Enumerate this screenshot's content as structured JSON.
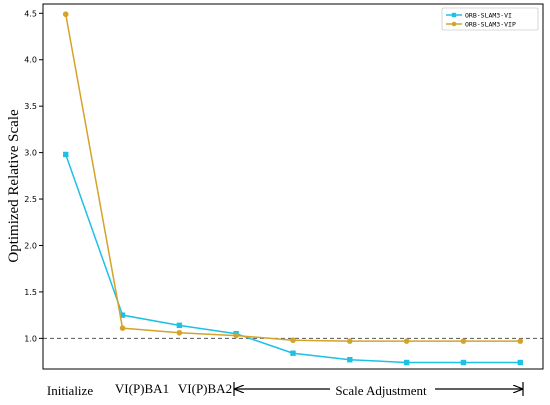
{
  "chart_data": {
    "type": "line",
    "title": "",
    "xlabel": "",
    "ylabel": "Optimized Relative Scale",
    "x": [
      1,
      2,
      3,
      4,
      5,
      6,
      7,
      8,
      9
    ],
    "xlim": [
      0.6,
      9.4
    ],
    "ylim": [
      0.67,
      4.6
    ],
    "yticks": [
      1.0,
      1.5,
      2.0,
      2.5,
      3.0,
      3.5,
      4.0,
      4.5
    ],
    "ytick_labels": [
      "1.0",
      "1.5",
      "2.0",
      "2.5",
      "3.0",
      "3.5",
      "4.0",
      "4.5"
    ],
    "reference_line": {
      "y": 1.0,
      "style": "dashed",
      "color": "#555555"
    },
    "x_annotations": {
      "initialize": "Initialize",
      "ba1": "VI(P)BA1",
      "ba2": "VI(P)BA2",
      "scale_adjustment": "Scale Adjustment"
    },
    "legend": {
      "placement": "top-right"
    },
    "series": [
      {
        "name": "ORB-SLAM3-VI",
        "color": "#1ec0e6",
        "marker": "square",
        "values": [
          2.98,
          1.25,
          1.14,
          1.05,
          0.84,
          0.77,
          0.74,
          0.74,
          0.74
        ]
      },
      {
        "name": "ORB-SLAM3-VIP",
        "color": "#d4a329",
        "marker": "circle",
        "values": [
          4.49,
          1.11,
          1.06,
          1.03,
          0.98,
          0.97,
          0.97,
          0.97,
          0.97
        ]
      }
    ]
  }
}
